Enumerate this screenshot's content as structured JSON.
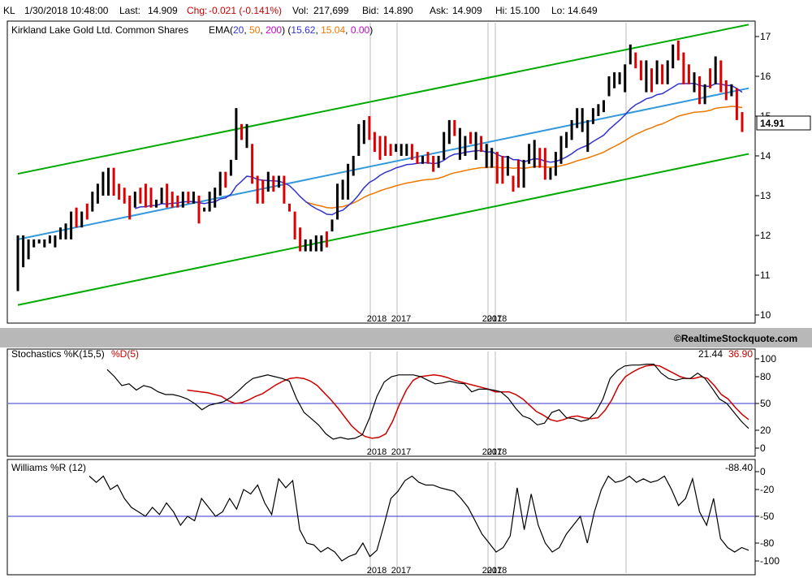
{
  "header": {
    "symbol": "KL",
    "datetime": "1/30/2018 10:48:00",
    "last_label": "Last:",
    "last": "14.909",
    "chg_label": "Chg:",
    "chg": "-0.021 (-0.141%)",
    "vol_label": "Vol:",
    "vol": "217,699",
    "bid_label": "Bid:",
    "bid": "14.890",
    "ask_label": "Ask:",
    "ask": "14.909",
    "hi_label": "Hi:",
    "hi": "15.100",
    "lo_label": "Lo:",
    "lo": "14.649"
  },
  "main_panel": {
    "title": "Kirkland Lake Gold Ltd. Common Shares",
    "ema_prefix": "EMA(",
    "ema_p1": "20",
    "ema_p2": "50",
    "ema_p3": "200",
    "ema_mid": ") (",
    "ema_v1": "15.62",
    "ema_v2": "15.04",
    "ema_v3": "0.00",
    "ema_suffix": ")",
    "last_price_tag": "14.91",
    "credit": "©RealtimeStockquote.com"
  },
  "stoch_panel": {
    "title_k": "Stochastics %K(15,5)",
    "title_d": "%D(5)",
    "value_k": "21.44",
    "value_d": "36.90"
  },
  "williams_panel": {
    "title": "Williams %R (12)",
    "value": "-88.40"
  },
  "colors": {
    "up_bar": "#000000",
    "down_bar": "#dd0000",
    "ema20": "#3333cc",
    "ema50": "#ee7700",
    "ema200": "#cc00cc",
    "channel": "#00aa00",
    "trendline": "#3399dd",
    "stoch_k": "#000000",
    "stoch_d": "#cc0000",
    "ref_line": "#3333cc"
  },
  "chart_data": [
    {
      "type": "bar",
      "name": "price",
      "y_ticks": [
        10,
        11,
        12,
        13,
        14,
        15,
        16,
        17
      ],
      "ylim": [
        10,
        17.2
      ],
      "x_labels": [
        "2018",
        "2017",
        "2017",
        "2018"
      ],
      "bars": [
        [
          10.6,
          12.0,
          10.6,
          12.0,
          1
        ],
        [
          11.2,
          12.0,
          11.2,
          11.7,
          1
        ],
        [
          11.5,
          11.9,
          11.4,
          11.8,
          1
        ],
        [
          11.7,
          11.9,
          11.7,
          11.9,
          1
        ],
        [
          11.8,
          11.9,
          11.8,
          11.9,
          1
        ],
        [
          11.8,
          11.9,
          11.7,
          11.9,
          1
        ],
        [
          11.9,
          12.0,
          11.8,
          11.9,
          1
        ],
        [
          11.8,
          12.0,
          11.7,
          12.0,
          1
        ],
        [
          12.0,
          12.2,
          11.9,
          12.0,
          1
        ],
        [
          12.0,
          12.3,
          11.9,
          12.2,
          1
        ],
        [
          12.2,
          12.6,
          11.9,
          12.6,
          1
        ],
        [
          12.6,
          12.7,
          12.2,
          12.2,
          0
        ],
        [
          12.3,
          12.6,
          12.2,
          12.5,
          1
        ],
        [
          12.5,
          12.8,
          12.4,
          12.6,
          0
        ],
        [
          12.6,
          13.1,
          12.6,
          13.1,
          1
        ],
        [
          13.1,
          13.3,
          12.8,
          13.0,
          1
        ],
        [
          13.2,
          13.6,
          13.0,
          13.5,
          1
        ],
        [
          13.5,
          13.7,
          13.0,
          13.7,
          1
        ],
        [
          13.6,
          13.7,
          13.0,
          13.0,
          0
        ],
        [
          13.1,
          13.3,
          12.9,
          13.2,
          0
        ],
        [
          13.2,
          13.2,
          12.8,
          12.9,
          0
        ],
        [
          12.9,
          13.0,
          12.4,
          12.5,
          0
        ],
        [
          12.7,
          13.1,
          12.7,
          12.9,
          1
        ],
        [
          12.9,
          13.2,
          12.8,
          13.1,
          0
        ],
        [
          13.1,
          13.3,
          12.7,
          12.8,
          0
        ],
        [
          12.8,
          13.2,
          12.7,
          13.0,
          0
        ],
        [
          12.8,
          12.9,
          12.7,
          12.8,
          1
        ],
        [
          12.8,
          13.2,
          12.8,
          13.2,
          1
        ],
        [
          13.2,
          13.3,
          12.7,
          12.7,
          0
        ],
        [
          12.8,
          13.1,
          12.7,
          13.0,
          0
        ],
        [
          12.9,
          13.0,
          12.7,
          12.9,
          0
        ],
        [
          12.9,
          13.1,
          12.7,
          13.1,
          1
        ],
        [
          13.1,
          13.1,
          12.8,
          12.9,
          0
        ],
        [
          12.8,
          13.1,
          12.8,
          12.9,
          1
        ],
        [
          12.9,
          13.0,
          12.3,
          12.5,
          0
        ],
        [
          12.6,
          12.7,
          12.6,
          12.6,
          1
        ],
        [
          12.7,
          13.1,
          12.6,
          13.1,
          1
        ],
        [
          12.9,
          13.2,
          12.7,
          13.0,
          1
        ],
        [
          13.1,
          13.6,
          13.0,
          13.6,
          1
        ],
        [
          13.6,
          13.6,
          13.2,
          13.2,
          0
        ],
        [
          13.5,
          13.9,
          13.5,
          13.9,
          1
        ],
        [
          14.0,
          15.2,
          13.9,
          15.2,
          1
        ],
        [
          14.7,
          14.8,
          14.4,
          14.5,
          0
        ],
        [
          14.8,
          14.8,
          14.2,
          14.7,
          1
        ],
        [
          14.3,
          14.3,
          13.3,
          13.3,
          0
        ],
        [
          13.4,
          13.5,
          12.8,
          12.8,
          0
        ],
        [
          12.9,
          13.4,
          12.8,
          13.2,
          0
        ],
        [
          13.2,
          13.6,
          13.1,
          13.3,
          1
        ],
        [
          13.3,
          13.5,
          13.1,
          13.3,
          0
        ],
        [
          13.3,
          13.5,
          13.2,
          13.3,
          1
        ],
        [
          13.5,
          13.5,
          12.8,
          12.9,
          0
        ],
        [
          12.8,
          12.8,
          12.6,
          12.6,
          0
        ],
        [
          12.6,
          12.6,
          11.9,
          11.9,
          0
        ],
        [
          11.9,
          12.2,
          11.6,
          11.6,
          0
        ],
        [
          11.7,
          11.9,
          11.6,
          11.7,
          1
        ],
        [
          11.8,
          11.9,
          11.6,
          11.8,
          1
        ],
        [
          11.9,
          12.0,
          11.6,
          11.9,
          1
        ],
        [
          11.9,
          12.0,
          11.6,
          12.0,
          1
        ],
        [
          11.9,
          12.1,
          11.7,
          11.8,
          0
        ],
        [
          12.1,
          12.4,
          12.1,
          12.4,
          1
        ],
        [
          12.4,
          13.3,
          12.4,
          13.3,
          1
        ],
        [
          13.1,
          13.4,
          12.9,
          13.0,
          1
        ],
        [
          13.0,
          13.8,
          12.9,
          13.8,
          1
        ],
        [
          13.7,
          14.0,
          13.5,
          14.0,
          1
        ],
        [
          14.0,
          14.8,
          14.0,
          14.5,
          1
        ],
        [
          14.5,
          14.9,
          14.3,
          14.9,
          1
        ],
        [
          14.9,
          15.0,
          14.4,
          14.6,
          0
        ],
        [
          14.5,
          14.6,
          14.1,
          14.1,
          0
        ],
        [
          14.0,
          14.5,
          13.9,
          14.5,
          0
        ],
        [
          14.3,
          14.5,
          14.0,
          14.3,
          0
        ],
        [
          14.3,
          14.3,
          14.0,
          14.1,
          0
        ],
        [
          14.1,
          14.3,
          14.1,
          14.3,
          1
        ],
        [
          14.2,
          14.3,
          14.0,
          14.1,
          1
        ],
        [
          14.2,
          14.3,
          14.0,
          14.2,
          1
        ],
        [
          14.2,
          14.3,
          13.9,
          13.9,
          0
        ],
        [
          14.0,
          14.1,
          13.8,
          14.0,
          0
        ],
        [
          13.9,
          14.0,
          13.8,
          14.0,
          1
        ],
        [
          14.0,
          14.1,
          13.8,
          13.8,
          0
        ],
        [
          13.7,
          14.0,
          13.6,
          13.6,
          0
        ],
        [
          14.0,
          14.0,
          13.7,
          14.0,
          1
        ],
        [
          14.0,
          14.6,
          13.9,
          14.5,
          1
        ],
        [
          14.5,
          14.9,
          14.3,
          14.9,
          1
        ],
        [
          14.8,
          14.9,
          14.5,
          14.6,
          0
        ],
        [
          14.7,
          14.7,
          13.9,
          14.2,
          1
        ],
        [
          14.3,
          14.5,
          14.0,
          14.4,
          1
        ],
        [
          14.5,
          14.6,
          14.3,
          14.3,
          0
        ],
        [
          14.3,
          14.6,
          13.9,
          14.3,
          1
        ],
        [
          14.4,
          14.5,
          14.1,
          14.2,
          0
        ],
        [
          14.3,
          14.3,
          13.7,
          13.7,
          1
        ],
        [
          13.8,
          14.2,
          13.7,
          14.2,
          1
        ],
        [
          13.8,
          14.1,
          13.3,
          13.4,
          0
        ],
        [
          13.6,
          14.0,
          13.3,
          13.4,
          0
        ],
        [
          13.4,
          14.0,
          13.5,
          14.0,
          1
        ],
        [
          13.4,
          13.5,
          13.1,
          13.2,
          0
        ],
        [
          13.2,
          13.9,
          13.2,
          13.9,
          0
        ],
        [
          13.6,
          13.9,
          13.2,
          13.3,
          1
        ],
        [
          13.8,
          14.3,
          13.8,
          14.3,
          1
        ],
        [
          14.0,
          14.4,
          13.7,
          14.3,
          1
        ],
        [
          13.8,
          14.2,
          13.7,
          13.8,
          0
        ],
        [
          14.0,
          14.2,
          13.4,
          13.4,
          0
        ],
        [
          13.4,
          13.7,
          13.4,
          13.6,
          1
        ],
        [
          13.6,
          14.1,
          13.5,
          14.0,
          1
        ],
        [
          14.0,
          14.5,
          13.8,
          14.4,
          1
        ],
        [
          14.3,
          14.6,
          14.2,
          14.6,
          1
        ],
        [
          14.6,
          14.9,
          14.4,
          14.8,
          1
        ],
        [
          14.8,
          15.2,
          14.7,
          15.1,
          1
        ],
        [
          14.8,
          15.2,
          14.6,
          14.8,
          1
        ],
        [
          14.2,
          14.9,
          14.1,
          14.8,
          1
        ],
        [
          14.9,
          15.2,
          14.8,
          15.2,
          1
        ],
        [
          15.0,
          15.3,
          15.0,
          15.2,
          1
        ],
        [
          15.2,
          15.4,
          15.1,
          15.3,
          1
        ],
        [
          15.5,
          16.0,
          15.5,
          16.0,
          1
        ],
        [
          15.8,
          16.1,
          15.7,
          15.9,
          1
        ],
        [
          16.0,
          16.1,
          15.8,
          16.0,
          1
        ],
        [
          16.0,
          16.3,
          15.6,
          16.3,
          1
        ],
        [
          16.3,
          16.8,
          16.3,
          16.6,
          1
        ],
        [
          16.6,
          16.6,
          16.2,
          16.3,
          0
        ],
        [
          16.2,
          16.4,
          15.9,
          16.0,
          0
        ],
        [
          16.1,
          16.4,
          15.6,
          16.2,
          1
        ],
        [
          16.2,
          16.2,
          15.6,
          15.8,
          0
        ],
        [
          15.8,
          16.4,
          15.8,
          16.2,
          1
        ],
        [
          16.2,
          16.3,
          15.8,
          15.8,
          0
        ],
        [
          15.8,
          16.4,
          15.8,
          16.4,
          1
        ],
        [
          16.4,
          16.8,
          16.2,
          16.5,
          1
        ],
        [
          16.8,
          16.9,
          16.4,
          16.6,
          0
        ],
        [
          16.6,
          16.6,
          15.8,
          15.9,
          0
        ],
        [
          16.1,
          16.3,
          15.8,
          15.8,
          0
        ],
        [
          15.8,
          16.1,
          15.6,
          15.9,
          1
        ],
        [
          15.8,
          16.0,
          15.3,
          15.3,
          0
        ],
        [
          15.5,
          15.8,
          15.3,
          15.5,
          1
        ],
        [
          15.8,
          16.2,
          15.7,
          15.8,
          0
        ],
        [
          15.9,
          16.5,
          15.8,
          16.4,
          1
        ],
        [
          16.4,
          16.4,
          15.6,
          15.7,
          0
        ],
        [
          15.7,
          15.9,
          15.4,
          15.5,
          0
        ],
        [
          15.7,
          15.8,
          15.5,
          15.7,
          1
        ],
        [
          15.6,
          15.7,
          14.9,
          15.0,
          0
        ],
        [
          15.0,
          15.1,
          14.6,
          14.7,
          0
        ]
      ]
    },
    {
      "type": "line",
      "name": "stochastics",
      "y_ticks": [
        0,
        20,
        50,
        80,
        100
      ],
      "ylim": [
        0,
        100
      ],
      "x_labels": [
        "2018",
        "2017",
        "2017",
        "2018"
      ],
      "k": [
        88,
        80,
        70,
        72,
        65,
        70,
        68,
        63,
        60,
        60,
        58,
        55,
        50,
        43,
        48,
        50,
        52,
        57,
        64,
        72,
        78,
        80,
        82,
        80,
        78,
        75,
        55,
        40,
        33,
        26,
        16,
        10,
        12,
        10,
        11,
        15,
        34,
        58,
        74,
        80,
        82,
        82,
        82,
        80,
        76,
        72,
        73,
        75,
        73,
        72,
        63,
        66,
        66,
        65,
        63,
        56,
        45,
        36,
        33,
        26,
        28,
        40,
        43,
        34,
        33,
        30,
        32,
        40,
        55,
        78,
        87,
        92,
        93,
        93,
        94,
        94,
        84,
        78,
        76,
        78,
        78,
        84,
        78,
        67,
        55,
        50,
        40,
        30,
        22
      ],
      "d": [
        null,
        null,
        null,
        null,
        null,
        null,
        65,
        64,
        63,
        62,
        60,
        58,
        53,
        50,
        51,
        54,
        58,
        61,
        66,
        71,
        75,
        78,
        79,
        78,
        75,
        70,
        62,
        54,
        45,
        35,
        25,
        18,
        13,
        11,
        12,
        16,
        30,
        49,
        65,
        76,
        80,
        81,
        82,
        81,
        79,
        76,
        74,
        72,
        70,
        68,
        66,
        63,
        63,
        63,
        60,
        55,
        48,
        41,
        37,
        32,
        30,
        32,
        35,
        36,
        34,
        33,
        34,
        42,
        54,
        70,
        80,
        85,
        89,
        92,
        93,
        92,
        88,
        84,
        80,
        78,
        78,
        80,
        78,
        70,
        60,
        55,
        46,
        38,
        32
      ]
    },
    {
      "type": "line",
      "name": "williams_r",
      "y_ticks": [
        0,
        -20,
        -50,
        -80,
        -100
      ],
      "ylim": [
        -100,
        0
      ],
      "x_labels": [
        "2018",
        "2017",
        "2017",
        "2018"
      ],
      "values": [
        -5,
        -12,
        -5,
        -20,
        -15,
        -30,
        -40,
        -45,
        -50,
        -40,
        -48,
        -35,
        -45,
        -60,
        -50,
        -55,
        -30,
        -40,
        -50,
        -45,
        -30,
        -42,
        -20,
        -25,
        -15,
        -35,
        -48,
        -8,
        -18,
        -10,
        -65,
        -80,
        -82,
        -90,
        -85,
        -90,
        -100,
        -95,
        -92,
        -80,
        -95,
        -88,
        -60,
        -30,
        -22,
        -10,
        -5,
        -12,
        -15,
        -15,
        -18,
        -20,
        -22,
        -30,
        -40,
        -55,
        -70,
        -80,
        -90,
        -85,
        -72,
        -18,
        -65,
        -25,
        -60,
        -80,
        -90,
        -85,
        -70,
        -60,
        -50,
        -80,
        -45,
        -20,
        -5,
        -12,
        -10,
        -5,
        -12,
        -8,
        -12,
        -10,
        -5,
        -20,
        -38,
        -30,
        -8,
        -45,
        -60,
        -30,
        -75,
        -85,
        -90,
        -85,
        -88
      ]
    }
  ]
}
